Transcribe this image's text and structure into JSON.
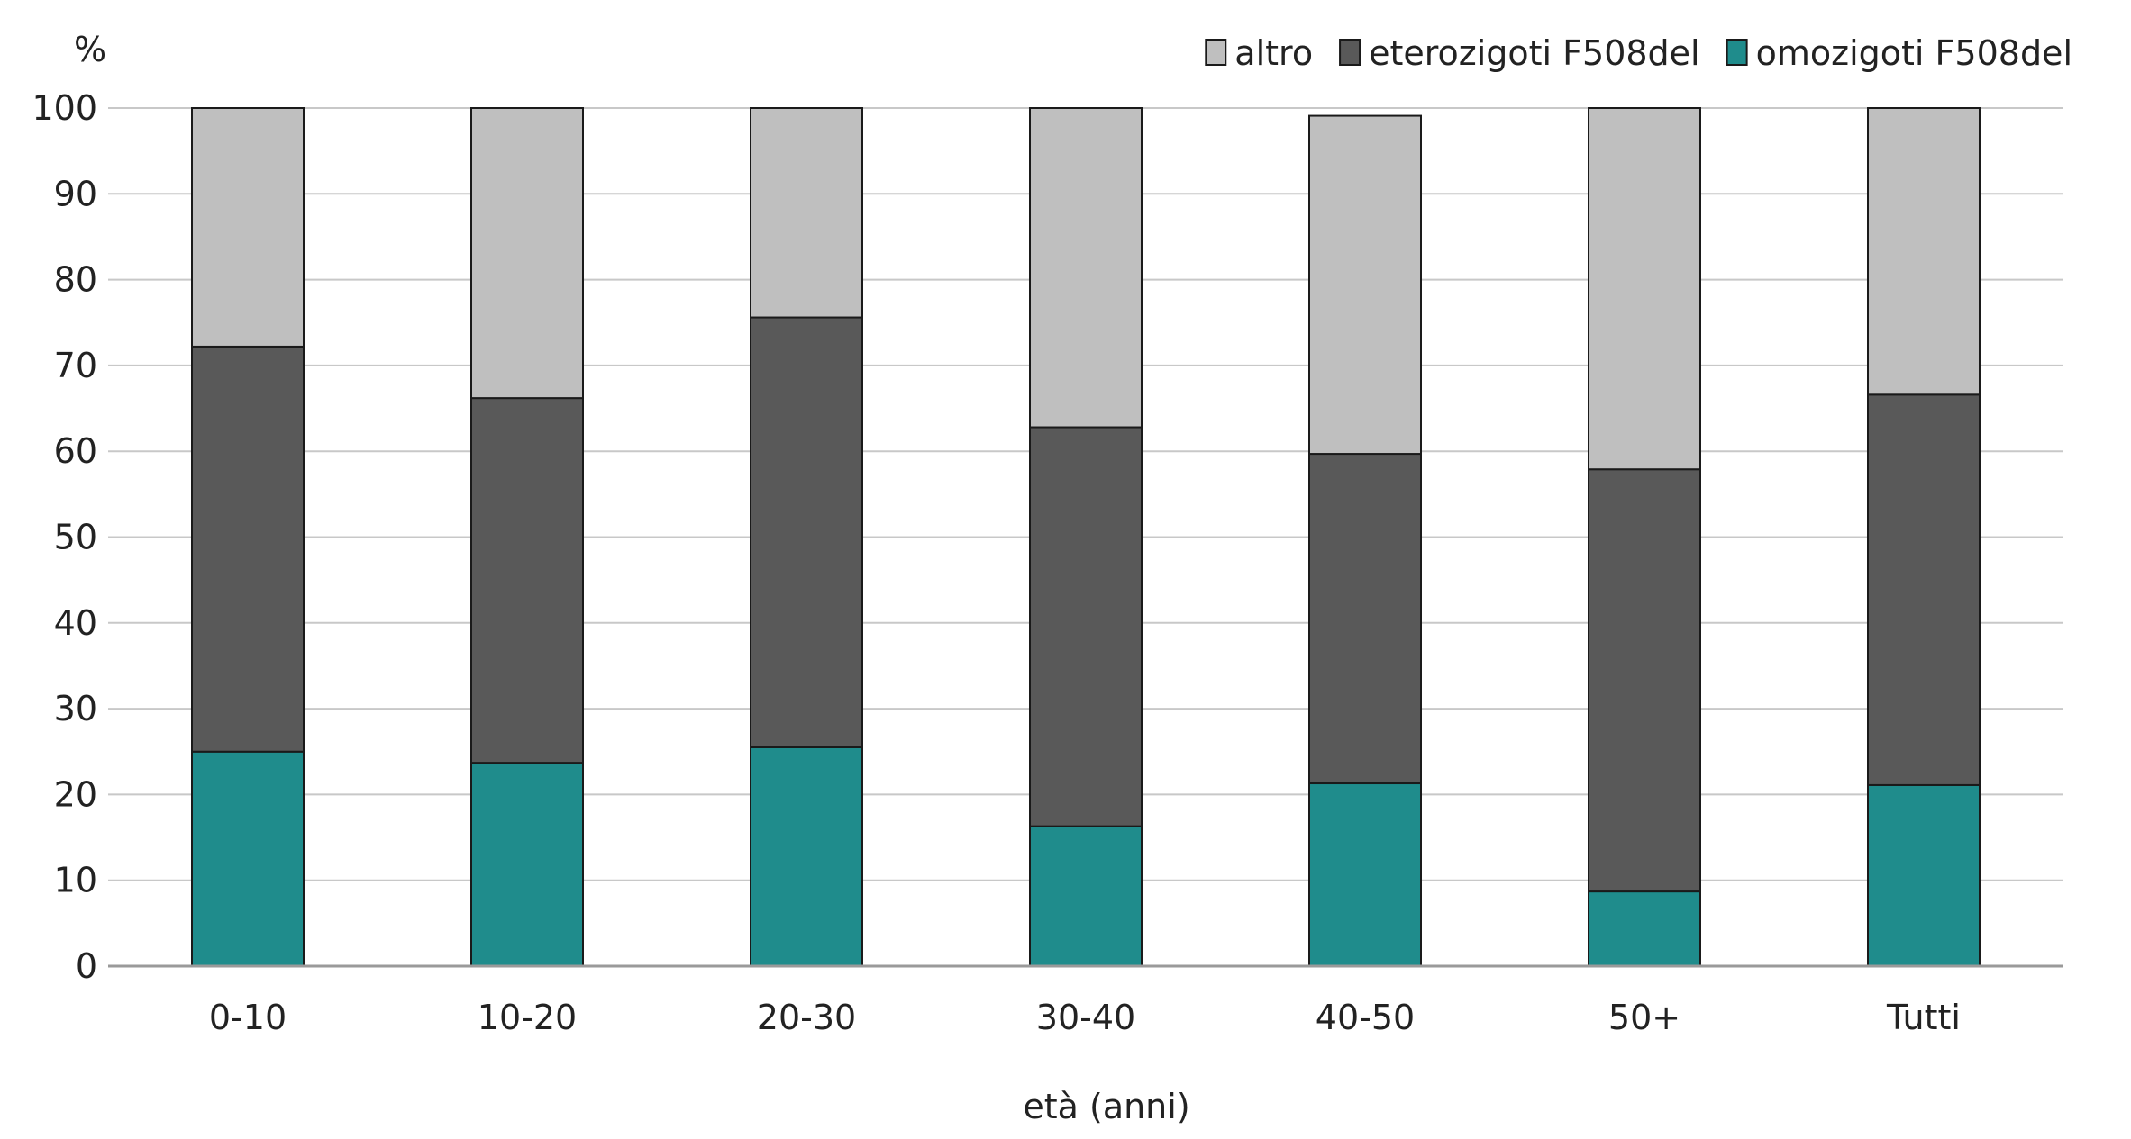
{
  "chart_data": {
    "type": "bar",
    "stacked": true,
    "categories": [
      "0-10",
      "10-20",
      "20-30",
      "30-40",
      "40-50",
      "50+",
      "Tutti"
    ],
    "series": [
      {
        "name": "omozigoti F508del",
        "color": "#1f8c8c",
        "values": [
          25.0,
          23.7,
          25.5,
          16.3,
          21.3,
          8.7,
          21.1
        ]
      },
      {
        "name": "eterozigoti F508del",
        "color": "#595959",
        "values": [
          47.2,
          42.5,
          50.1,
          46.5,
          38.4,
          49.2,
          45.5
        ]
      },
      {
        "name": "altro",
        "color": "#bfbfbf",
        "values": [
          27.8,
          33.8,
          24.4,
          37.2,
          39.4,
          42.1,
          33.4
        ]
      }
    ],
    "legend_order": [
      "altro",
      "eterozigoti F508del",
      "omozigoti F508del"
    ],
    "ylabel": "%",
    "xlabel": "età (anni)",
    "ylim": [
      0,
      100
    ],
    "yticks": [
      0,
      10,
      20,
      30,
      40,
      50,
      60,
      70,
      80,
      90,
      100
    ],
    "grid": true,
    "legend_position": "top-right"
  }
}
